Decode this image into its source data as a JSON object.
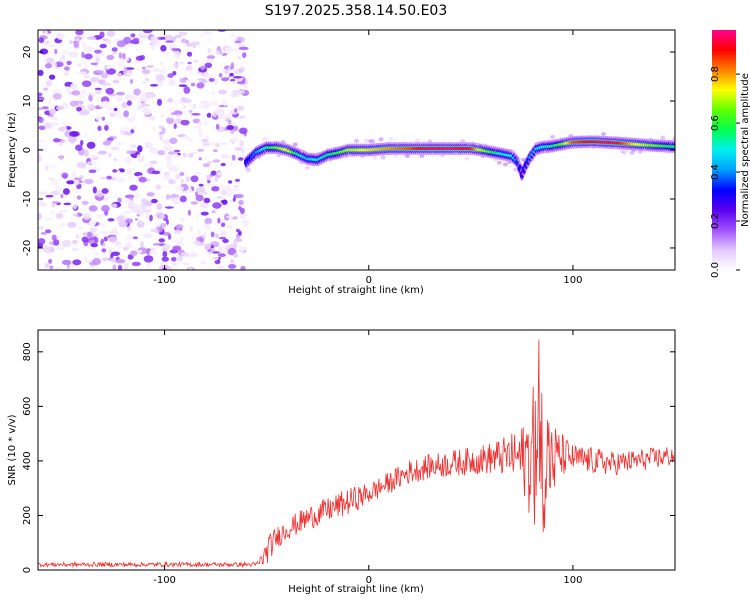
{
  "title": "S197.2025.358.14.50.E03",
  "chart_data": [
    {
      "type": "heatmap",
      "name": "spectrogram",
      "xlabel": "Height of straight line (km)",
      "ylabel": "Frequency (Hz)",
      "xlim": [
        -162,
        150
      ],
      "ylim": [
        -24.5,
        24.5
      ],
      "xticks": [
        -100,
        0,
        100
      ],
      "yticks": [
        -20,
        -10,
        0,
        10,
        20
      ],
      "noise_region_x": [
        -162,
        -60
      ],
      "ridge": {
        "x": [
          -60,
          -55,
          -50,
          -45,
          -40,
          -35,
          -30,
          -25,
          -20,
          -15,
          -10,
          0,
          10,
          20,
          30,
          40,
          50,
          55,
          60,
          65,
          70,
          73,
          75,
          77,
          79,
          82,
          85,
          90,
          95,
          100,
          110,
          120,
          130,
          140,
          150
        ],
        "freq": [
          -2.5,
          -0.5,
          0.5,
          0.5,
          0.0,
          -0.8,
          -1.8,
          -2.0,
          -1.0,
          -0.6,
          0.0,
          0.0,
          0.3,
          0.3,
          0.3,
          0.3,
          0.3,
          0.0,
          -0.4,
          -0.8,
          -1.2,
          -2.5,
          -5.0,
          -3.0,
          -1.5,
          0.2,
          0.6,
          0.8,
          1.2,
          1.6,
          1.7,
          1.5,
          1.2,
          0.9,
          0.7
        ],
        "amplitude": [
          0.3,
          0.4,
          0.55,
          0.65,
          0.75,
          0.55,
          0.45,
          0.5,
          0.55,
          0.6,
          0.7,
          0.75,
          0.8,
          0.85,
          0.95,
          0.95,
          0.9,
          0.7,
          0.6,
          0.5,
          0.5,
          0.35,
          0.25,
          0.3,
          0.4,
          0.45,
          0.5,
          0.55,
          0.65,
          0.85,
          0.92,
          0.95,
          0.75,
          0.65,
          0.55
        ]
      },
      "colorbar": {
        "label": "Normalized spectral amplitude",
        "ticks": [
          "0.0",
          "0.2",
          "0.4",
          "0.6",
          "0.8"
        ],
        "tick_values": [
          0.0,
          0.2,
          0.4,
          0.6,
          0.8
        ],
        "range": [
          0,
          0.98
        ],
        "stops": [
          "#ffffff",
          "#e4c8ff",
          "#a050ff",
          "#5a00f0",
          "#0000ff",
          "#00a0ff",
          "#00f0f0",
          "#00ff50",
          "#60ff00",
          "#ffff00",
          "#ff8000",
          "#ff0000",
          "#ff0090"
        ]
      }
    },
    {
      "type": "line",
      "name": "snr",
      "xlabel": "Height of straight line (km)",
      "ylabel": "SNR (10 * v/v)",
      "xlim": [
        -162,
        150
      ],
      "ylim": [
        0,
        880
      ],
      "xticks": [
        -100,
        0,
        100
      ],
      "yticks": [
        0,
        200,
        400,
        600,
        800
      ],
      "color": "#f03030",
      "envelope": {
        "x": [
          -162,
          -55,
          -52,
          -49,
          -45,
          -40,
          -30,
          -20,
          -10,
          0,
          10,
          20,
          30,
          40,
          50,
          60,
          70,
          75,
          80,
          85,
          90,
          95,
          100,
          110,
          120,
          130,
          140,
          150
        ],
        "mean": [
          20,
          20,
          40,
          80,
          120,
          150,
          190,
          220,
          250,
          280,
          320,
          360,
          380,
          390,
          400,
          410,
          420,
          410,
          420,
          420,
          400,
          420,
          410,
          400,
          390,
          400,
          410,
          420
        ],
        "amp": [
          8,
          8,
          30,
          50,
          40,
          40,
          45,
          45,
          50,
          40,
          40,
          45,
          45,
          50,
          50,
          60,
          80,
          120,
          250,
          300,
          150,
          80,
          50,
          50,
          45,
          40,
          40,
          40
        ]
      }
    }
  ]
}
